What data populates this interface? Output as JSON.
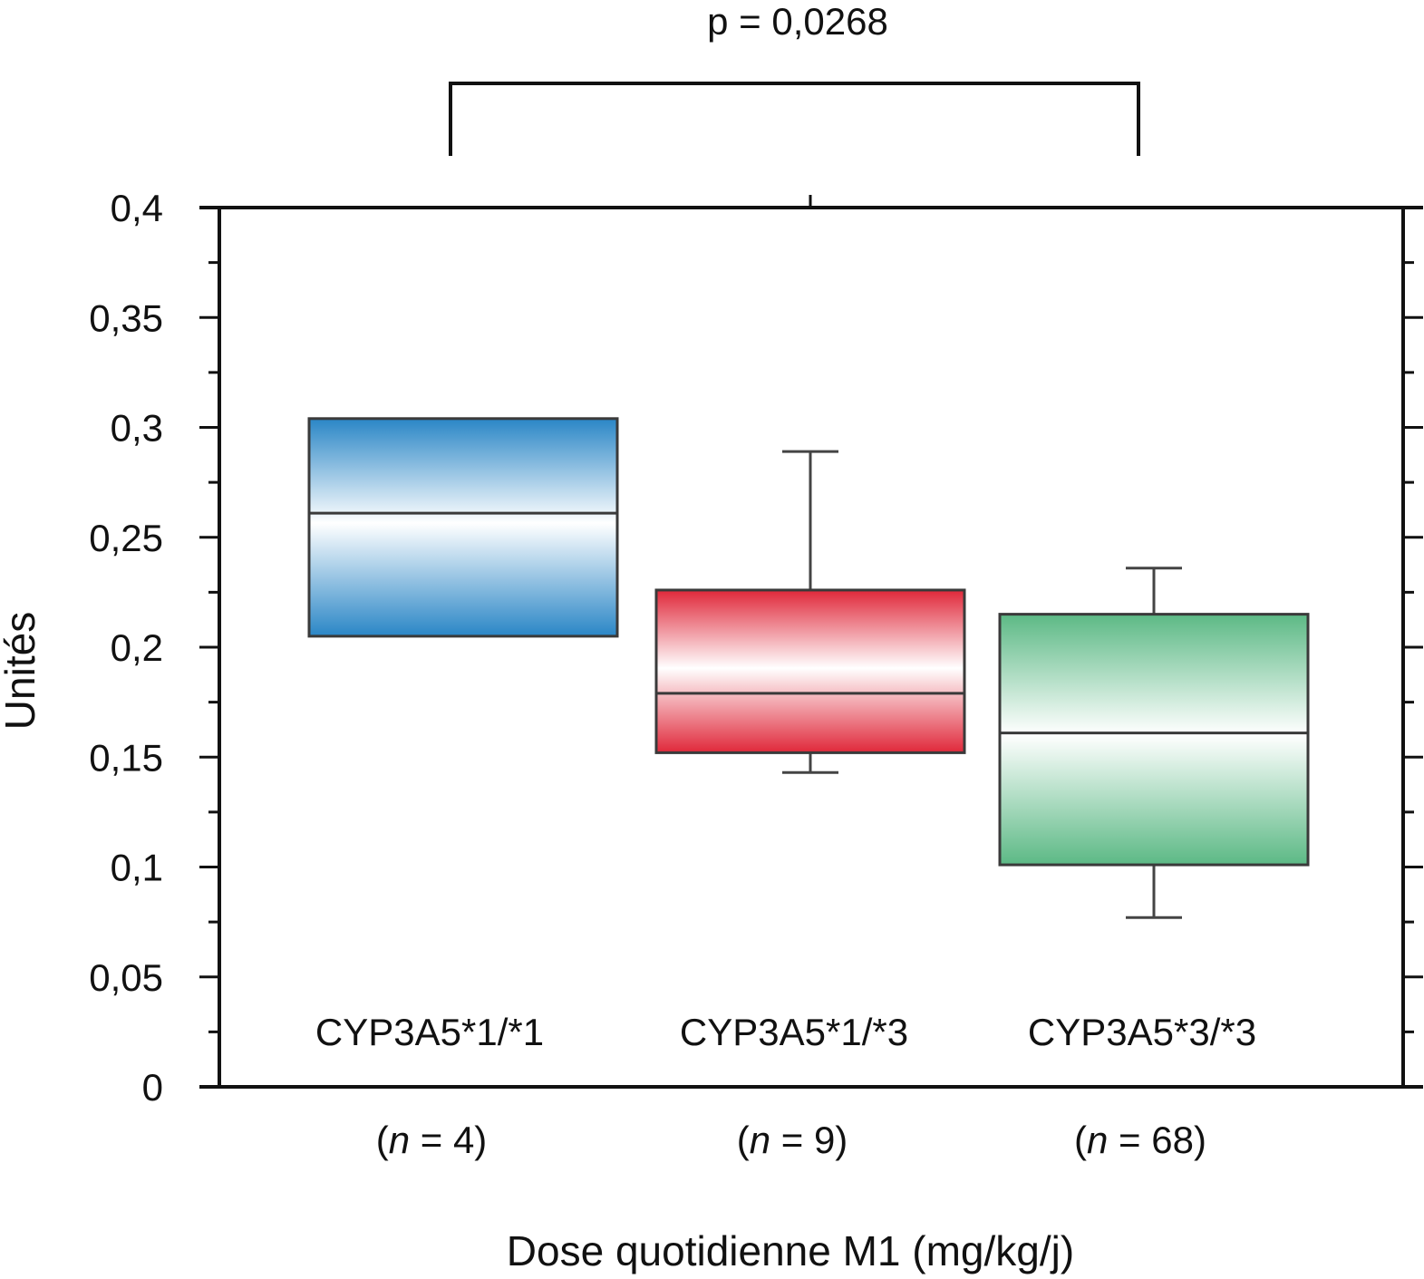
{
  "chart_data": {
    "type": "box",
    "title": "",
    "xlabel": "Dose quotidienne M1 (mg/kg/j)",
    "ylabel": "Unités",
    "ylim": [
      0,
      0.4
    ],
    "y_ticks": [
      {
        "value": 0,
        "label": "0"
      },
      {
        "value": 0.05,
        "label": "0,05"
      },
      {
        "value": 0.1,
        "label": "0,1"
      },
      {
        "value": 0.15,
        "label": "0,15"
      },
      {
        "value": 0.2,
        "label": "0,2"
      },
      {
        "value": 0.25,
        "label": "0,25"
      },
      {
        "value": 0.3,
        "label": "0,3"
      },
      {
        "value": 0.35,
        "label": "0,35"
      },
      {
        "value": 0.4,
        "label": "0,4"
      }
    ],
    "minor_tick_step": 0.025,
    "grid": false,
    "categories": [
      "CYP3A5*1/*1",
      "CYP3A5*1/*3",
      "CYP3A5*3/*3"
    ],
    "sample_sizes": [
      {
        "prefix": "(",
        "n": "n",
        "eq": " = ",
        "value": "4",
        "suffix": ")"
      },
      {
        "prefix": "(",
        "n": "n",
        "eq": " = ",
        "value": "9",
        "suffix": ")"
      },
      {
        "prefix": "(",
        "n": "n",
        "eq": " = ",
        "value": "68",
        "suffix": ")"
      }
    ],
    "boxes": [
      {
        "category": "CYP3A5*1/*1",
        "whisker_low": null,
        "q1": 0.205,
        "median": 0.261,
        "q3": 0.304,
        "whisker_high": null,
        "color": "#2a86c6"
      },
      {
        "category": "CYP3A5*1/*3",
        "whisker_low": 0.143,
        "q1": 0.152,
        "median": 0.179,
        "q3": 0.226,
        "whisker_high": 0.289,
        "color": "#e0283a"
      },
      {
        "category": "CYP3A5*3/*3",
        "whisker_low": 0.077,
        "q1": 0.101,
        "median": 0.161,
        "q3": 0.215,
        "whisker_high": 0.236,
        "color": "#5cb985"
      }
    ],
    "annotation": {
      "text": "p = 0,0268",
      "from_category": "CYP3A5*1/*1",
      "to_category": "CYP3A5*3/*3"
    }
  }
}
